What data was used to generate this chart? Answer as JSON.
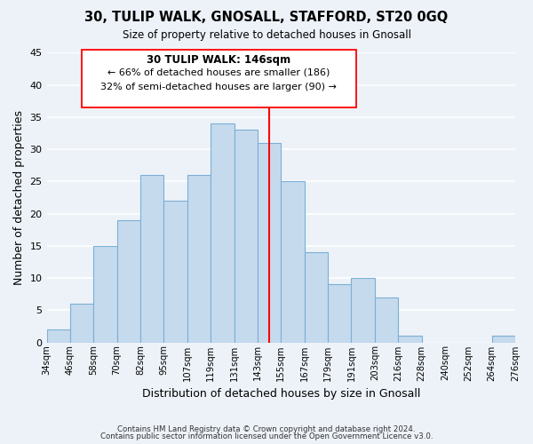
{
  "title": "30, TULIP WALK, GNOSALL, STAFFORD, ST20 0GQ",
  "subtitle": "Size of property relative to detached houses in Gnosall",
  "xlabel": "Distribution of detached houses by size in Gnosall",
  "ylabel": "Number of detached properties",
  "bin_labels": [
    "34sqm",
    "46sqm",
    "58sqm",
    "70sqm",
    "82sqm",
    "95sqm",
    "107sqm",
    "119sqm",
    "131sqm",
    "143sqm",
    "155sqm",
    "167sqm",
    "179sqm",
    "191sqm",
    "203sqm",
    "216sqm",
    "228sqm",
    "240sqm",
    "252sqm",
    "264sqm",
    "276sqm"
  ],
  "bar_values": [
    2,
    6,
    15,
    19,
    26,
    22,
    26,
    34,
    33,
    31,
    25,
    14,
    9,
    10,
    7,
    1,
    0,
    0,
    0,
    1
  ],
  "bar_color": "#c6daee",
  "bar_edge_color": "#7bafd4",
  "property_line_x": 9.5,
  "property_line_color": "red",
  "annotation_title": "30 TULIP WALK: 146sqm",
  "annotation_line1": "← 66% of detached houses are smaller (186)",
  "annotation_line2": "32% of semi-detached houses are larger (90) →",
  "ylim": [
    0,
    45
  ],
  "yticks": [
    0,
    5,
    10,
    15,
    20,
    25,
    30,
    35,
    40,
    45
  ],
  "footer_line1": "Contains HM Land Registry data © Crown copyright and database right 2024.",
  "footer_line2": "Contains public sector information licensed under the Open Government Licence v3.0.",
  "background_color": "#edf2f9",
  "grid_color": "#ffffff"
}
